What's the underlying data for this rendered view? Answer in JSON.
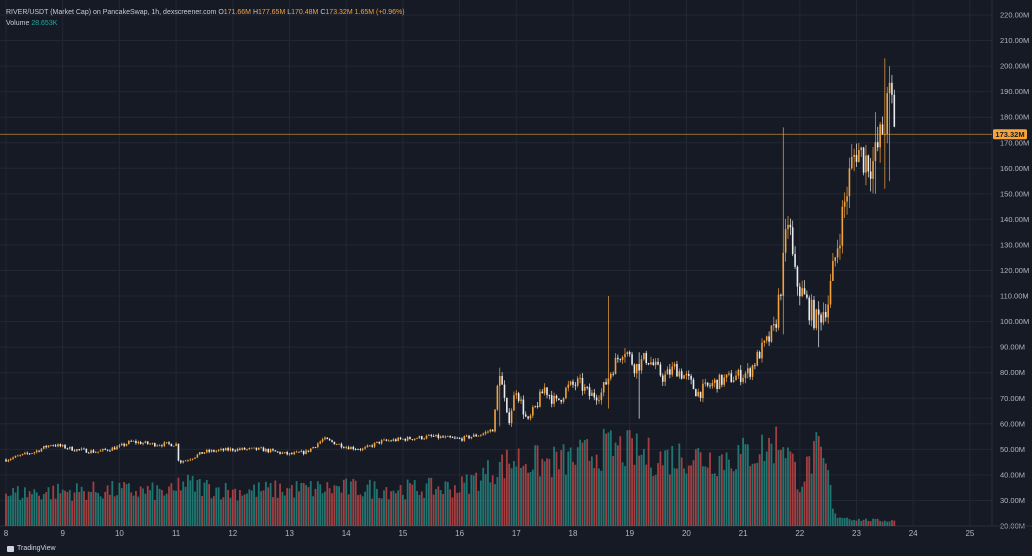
{
  "header": {
    "symbol": "RIVER/USDT (Market Cap) on PancakeSwap, 1h, dexscreener.com",
    "o_label": "O",
    "o_value": "171.66M",
    "h_label": "H",
    "h_value": "177.65M",
    "l_label": "L",
    "l_value": "170.48M",
    "c_label": "C",
    "c_value": "173.32M",
    "change": "1.65M (+0.96%)",
    "volume_label": "Volume",
    "volume_value": "28.653K"
  },
  "branding": {
    "name": "TradingView"
  },
  "colors": {
    "background": "#161a25",
    "grid": "#222734",
    "up_candle": "#f3a33c",
    "down_candle": "#e9ecf1",
    "volume_up": "#26a69a",
    "volume_down": "#ef5350",
    "price_line": "#e0a23a",
    "axis_text": "#b2b5be",
    "price_badge": "#f7a33b"
  },
  "chart_data": {
    "type": "candlestick",
    "x_unit": "day",
    "x_ticks": [
      "8",
      "9",
      "10",
      "11",
      "12",
      "13",
      "14",
      "15",
      "16",
      "17",
      "18",
      "19",
      "20",
      "21",
      "22",
      "23",
      "24",
      "25"
    ],
    "y_ticks": [
      "20.00M",
      "30.00M",
      "40.00M",
      "50.00M",
      "60.00M",
      "70.00M",
      "80.00M",
      "90.00M",
      "100.00M",
      "110.00M",
      "120.00M",
      "130.00M",
      "140.00M",
      "150.00M",
      "160.00M",
      "170.00M",
      "180.00M",
      "190.00M",
      "200.00M",
      "210.00M",
      "220.00M"
    ],
    "ylim_millions": [
      20,
      220
    ],
    "xlim_day": [
      8,
      25.3
    ],
    "last_price_label": "173.32M",
    "last_price_millions": 173.32,
    "price_path_millions": [
      [
        8.0,
        46
      ],
      [
        8.5,
        49
      ],
      [
        8.8,
        52
      ],
      [
        9.2,
        50
      ],
      [
        9.6,
        49
      ],
      [
        10.0,
        51
      ],
      [
        10.2,
        53
      ],
      [
        10.6,
        52
      ],
      [
        11.0,
        52
      ],
      [
        11.05,
        45
      ],
      [
        11.2,
        46
      ],
      [
        11.5,
        49
      ],
      [
        12.0,
        50
      ],
      [
        12.5,
        50
      ],
      [
        13.0,
        48
      ],
      [
        13.3,
        49
      ],
      [
        13.6,
        54
      ],
      [
        14.0,
        51
      ],
      [
        14.3,
        50
      ],
      [
        14.6,
        53
      ],
      [
        15.0,
        54
      ],
      [
        15.5,
        55
      ],
      [
        16.0,
        54
      ],
      [
        16.4,
        56
      ],
      [
        16.6,
        58
      ],
      [
        16.7,
        82
      ],
      [
        16.85,
        60
      ],
      [
        17.0,
        74
      ],
      [
        17.2,
        60
      ],
      [
        17.5,
        74
      ],
      [
        17.7,
        68
      ],
      [
        17.9,
        74
      ],
      [
        18.1,
        76
      ],
      [
        18.3,
        71
      ],
      [
        18.5,
        72
      ],
      [
        18.7,
        82
      ],
      [
        18.9,
        90
      ],
      [
        19.1,
        82
      ],
      [
        19.3,
        86
      ],
      [
        19.6,
        78
      ],
      [
        19.8,
        82
      ],
      [
        20.0,
        78
      ],
      [
        20.2,
        72
      ],
      [
        20.5,
        76
      ],
      [
        20.8,
        78
      ],
      [
        21.1,
        80
      ],
      [
        21.3,
        88
      ],
      [
        21.55,
        96
      ],
      [
        21.7,
        120
      ],
      [
        21.8,
        142
      ],
      [
        21.9,
        118
      ],
      [
        22.1,
        108
      ],
      [
        22.3,
        100
      ],
      [
        22.5,
        108
      ],
      [
        22.7,
        135
      ],
      [
        22.9,
        160
      ],
      [
        23.0,
        168
      ],
      [
        23.1,
        165
      ],
      [
        23.3,
        162
      ],
      [
        23.5,
        178
      ],
      [
        23.6,
        190
      ],
      [
        23.7,
        173.32
      ]
    ],
    "spikes_millions": [
      [
        16.72,
        59,
        82
      ],
      [
        18.62,
        66,
        110
      ],
      [
        19.15,
        62,
        88
      ],
      [
        21.72,
        95,
        176
      ],
      [
        22.35,
        90,
        108
      ],
      [
        23.32,
        150,
        182
      ],
      [
        23.52,
        152,
        203
      ],
      [
        23.58,
        155,
        200
      ]
    ],
    "volume_scale_ref_millions_at_base": 20,
    "volume_profile": [
      [
        8.0,
        0.3
      ],
      [
        9.0,
        0.32
      ],
      [
        10.0,
        0.33
      ],
      [
        11.0,
        0.31
      ],
      [
        11.05,
        0.4
      ],
      [
        12.0,
        0.32
      ],
      [
        13.0,
        0.34
      ],
      [
        14.0,
        0.35
      ],
      [
        15.0,
        0.34
      ],
      [
        16.0,
        0.36
      ],
      [
        16.7,
        0.55
      ],
      [
        17.0,
        0.62
      ],
      [
        17.5,
        0.58
      ],
      [
        18.0,
        0.62
      ],
      [
        18.6,
        0.72
      ],
      [
        19.0,
        0.7
      ],
      [
        19.5,
        0.62
      ],
      [
        20.0,
        0.66
      ],
      [
        20.5,
        0.62
      ],
      [
        21.0,
        0.66
      ],
      [
        21.5,
        0.74
      ],
      [
        21.7,
        0.82
      ],
      [
        22.0,
        0.4
      ],
      [
        22.3,
        0.7
      ],
      [
        22.5,
        0.48
      ],
      [
        22.6,
        0.1
      ],
      [
        23.0,
        0.06
      ],
      [
        23.5,
        0.05
      ],
      [
        23.7,
        0.05
      ]
    ]
  }
}
